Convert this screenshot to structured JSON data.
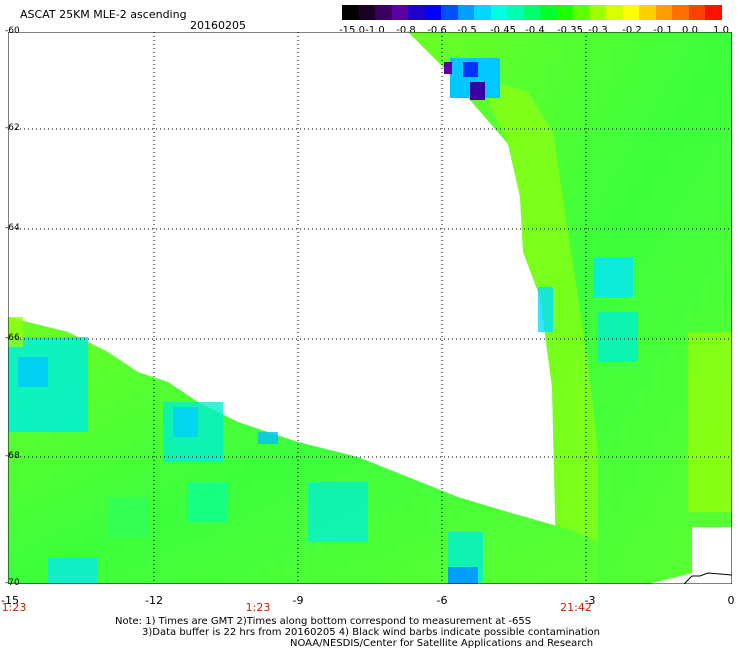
{
  "header": {
    "title": "ASCAT 25KM MLE-2 ascending",
    "date": "20160205"
  },
  "colorbar": {
    "labels": [
      "-15.0",
      "-1.0",
      "-0.8",
      "-0.6",
      "-0.5",
      "-0.45",
      "-0.4",
      "-0.35",
      "-0.3",
      "-0.2",
      "-0.1",
      "0.0",
      "1.0"
    ],
    "colors": [
      "#000000",
      "#1a0026",
      "#3a0060",
      "#5a00a0",
      "#2000d0",
      "#0000ff",
      "#0050ff",
      "#00a0ff",
      "#00d8ff",
      "#00ffe0",
      "#00ffb0",
      "#00ff70",
      "#00ff30",
      "#20ff00",
      "#60ff00",
      "#a0ff00",
      "#d8ff00",
      "#ffff00",
      "#ffd000",
      "#ffa000",
      "#ff7000",
      "#ff4000",
      "#ff1000"
    ]
  },
  "axes": {
    "y_labels": [
      "-60",
      "-62",
      "-64",
      "-66",
      "-68",
      "-70"
    ],
    "x_labels": [
      "-15",
      "-12",
      "-9",
      "-6",
      "-3",
      "0"
    ],
    "time_labels": [
      "1:23",
      "1:23",
      "21:42"
    ],
    "grid": "dotted"
  },
  "notes": {
    "line1": "Note: 1) Times are GMT 2)Times along bottom correspond to measurement at -65S",
    "line2": "3)Data buffer is 22 hrs from 20160205 4) Black wind barbs indicate possible contamination",
    "line3": "NOAA/NESDIS/Center for Satellite Applications and Research"
  }
}
